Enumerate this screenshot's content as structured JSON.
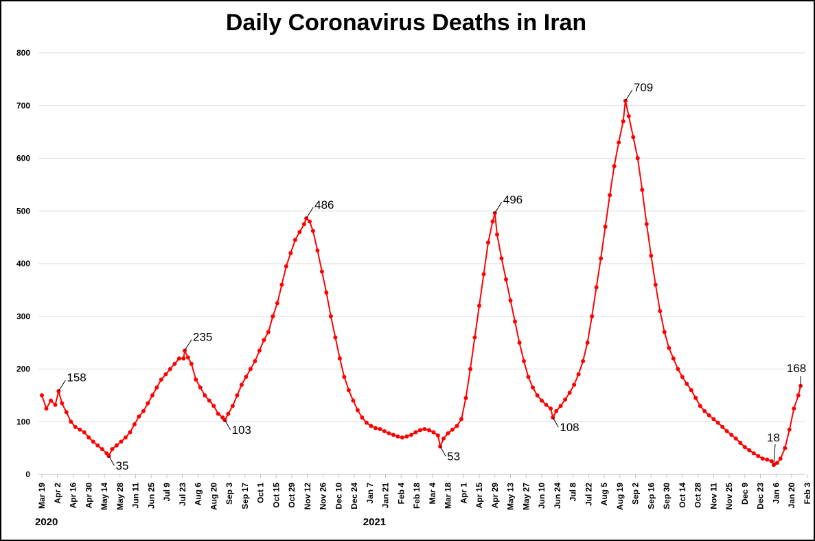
{
  "chart_data": {
    "type": "line",
    "title": "Daily Coronavirus Deaths in Iran",
    "xlabel": "",
    "ylabel": "",
    "ylim": [
      0,
      800
    ],
    "y_ticks": [
      "0",
      "100",
      "200",
      "300",
      "400",
      "500",
      "600",
      "700",
      "800"
    ],
    "x_tick_labels": [
      "Mar 19",
      "Apr 2",
      "Apr 16",
      "Apr 30",
      "May 14",
      "May 28",
      "Jun 11",
      "Jun 25",
      "Jul 9",
      "Jul 23",
      "Aug 6",
      "Aug 20",
      "Sep 3",
      "Sep 17",
      "Oct 1",
      "Oct 15",
      "Oct 29",
      "Nov 12",
      "Nov 26",
      "Dec 10",
      "Dec 24",
      "Jan 7",
      "Jan 21",
      "Feb 4",
      "Feb 18",
      "Mar 4",
      "Mar 18",
      "Apr 1",
      "Apr 15",
      "Apr 29",
      "May 13",
      "May 27",
      "Jun 10",
      "Jun 24",
      "Jul 8",
      "Jul 22",
      "Aug 5",
      "Aug 19",
      "Sep 2",
      "Sep 16",
      "Sep 30",
      "Oct 14",
      "Oct 28",
      "Nov 11",
      "Nov 25",
      "Dec 9",
      "Dec 23",
      "Jan 6",
      "Jan 20",
      "Feb 3"
    ],
    "year_labels": [
      {
        "label": "2020",
        "at_tick": 0
      },
      {
        "label": "2021",
        "at_tick": 21
      }
    ],
    "grid": true,
    "legend": "none",
    "series": [
      {
        "color": "#ff0000",
        "points": [
          [
            0,
            150
          ],
          [
            4,
            125
          ],
          [
            8,
            140
          ],
          [
            12,
            132
          ],
          [
            15,
            158
          ],
          [
            18,
            135
          ],
          [
            22,
            118
          ],
          [
            26,
            100
          ],
          [
            30,
            90
          ],
          [
            34,
            85
          ],
          [
            38,
            80
          ],
          [
            42,
            70
          ],
          [
            46,
            62
          ],
          [
            50,
            55
          ],
          [
            54,
            48
          ],
          [
            58,
            40
          ],
          [
            60,
            35
          ],
          [
            63,
            48
          ],
          [
            67,
            55
          ],
          [
            71,
            62
          ],
          [
            75,
            70
          ],
          [
            79,
            80
          ],
          [
            83,
            95
          ],
          [
            87,
            110
          ],
          [
            91,
            120
          ],
          [
            95,
            135
          ],
          [
            99,
            150
          ],
          [
            103,
            165
          ],
          [
            107,
            180
          ],
          [
            111,
            190
          ],
          [
            115,
            200
          ],
          [
            119,
            210
          ],
          [
            123,
            220
          ],
          [
            127,
            220
          ],
          [
            128,
            235
          ],
          [
            131,
            222
          ],
          [
            134,
            210
          ],
          [
            138,
            180
          ],
          [
            142,
            165
          ],
          [
            146,
            150
          ],
          [
            150,
            140
          ],
          [
            154,
            130
          ],
          [
            158,
            115
          ],
          [
            162,
            108
          ],
          [
            164,
            103
          ],
          [
            167,
            115
          ],
          [
            171,
            130
          ],
          [
            175,
            150
          ],
          [
            179,
            170
          ],
          [
            183,
            185
          ],
          [
            187,
            200
          ],
          [
            191,
            215
          ],
          [
            195,
            235
          ],
          [
            199,
            255
          ],
          [
            203,
            270
          ],
          [
            207,
            300
          ],
          [
            211,
            325
          ],
          [
            215,
            360
          ],
          [
            219,
            395
          ],
          [
            223,
            420
          ],
          [
            227,
            445
          ],
          [
            231,
            460
          ],
          [
            235,
            475
          ],
          [
            237,
            486
          ],
          [
            240,
            480
          ],
          [
            243,
            462
          ],
          [
            247,
            425
          ],
          [
            251,
            385
          ],
          [
            255,
            345
          ],
          [
            259,
            300
          ],
          [
            263,
            260
          ],
          [
            267,
            220
          ],
          [
            271,
            185
          ],
          [
            275,
            160
          ],
          [
            279,
            140
          ],
          [
            283,
            122
          ],
          [
            287,
            108
          ],
          [
            291,
            98
          ],
          [
            295,
            92
          ],
          [
            299,
            88
          ],
          [
            303,
            86
          ],
          [
            307,
            82
          ],
          [
            311,
            78
          ],
          [
            315,
            75
          ],
          [
            319,
            72
          ],
          [
            323,
            70
          ],
          [
            327,
            72
          ],
          [
            331,
            75
          ],
          [
            335,
            80
          ],
          [
            339,
            84
          ],
          [
            343,
            86
          ],
          [
            347,
            84
          ],
          [
            351,
            80
          ],
          [
            355,
            74
          ],
          [
            357,
            53
          ],
          [
            360,
            68
          ],
          [
            364,
            78
          ],
          [
            368,
            85
          ],
          [
            372,
            92
          ],
          [
            376,
            105
          ],
          [
            380,
            145
          ],
          [
            384,
            200
          ],
          [
            388,
            260
          ],
          [
            392,
            320
          ],
          [
            396,
            380
          ],
          [
            400,
            440
          ],
          [
            404,
            480
          ],
          [
            406,
            496
          ],
          [
            408,
            455
          ],
          [
            412,
            410
          ],
          [
            416,
            370
          ],
          [
            420,
            330
          ],
          [
            424,
            290
          ],
          [
            428,
            250
          ],
          [
            432,
            215
          ],
          [
            436,
            185
          ],
          [
            440,
            165
          ],
          [
            444,
            150
          ],
          [
            448,
            140
          ],
          [
            452,
            132
          ],
          [
            456,
            125
          ],
          [
            458,
            108
          ],
          [
            461,
            120
          ],
          [
            465,
            130
          ],
          [
            469,
            142
          ],
          [
            473,
            155
          ],
          [
            477,
            170
          ],
          [
            481,
            190
          ],
          [
            485,
            215
          ],
          [
            489,
            250
          ],
          [
            493,
            300
          ],
          [
            497,
            355
          ],
          [
            501,
            410
          ],
          [
            505,
            470
          ],
          [
            509,
            530
          ],
          [
            513,
            585
          ],
          [
            517,
            630
          ],
          [
            521,
            670
          ],
          [
            523,
            709
          ],
          [
            526,
            680
          ],
          [
            530,
            640
          ],
          [
            534,
            600
          ],
          [
            538,
            540
          ],
          [
            542,
            475
          ],
          [
            546,
            415
          ],
          [
            550,
            360
          ],
          [
            554,
            310
          ],
          [
            558,
            270
          ],
          [
            562,
            240
          ],
          [
            566,
            220
          ],
          [
            570,
            200
          ],
          [
            574,
            185
          ],
          [
            578,
            172
          ],
          [
            582,
            160
          ],
          [
            586,
            145
          ],
          [
            590,
            130
          ],
          [
            594,
            120
          ],
          [
            598,
            112
          ],
          [
            602,
            105
          ],
          [
            606,
            98
          ],
          [
            610,
            90
          ],
          [
            614,
            82
          ],
          [
            618,
            75
          ],
          [
            622,
            68
          ],
          [
            626,
            60
          ],
          [
            630,
            52
          ],
          [
            634,
            46
          ],
          [
            638,
            40
          ],
          [
            642,
            35
          ],
          [
            646,
            30
          ],
          [
            650,
            28
          ],
          [
            654,
            25
          ],
          [
            656,
            18
          ],
          [
            659,
            22
          ],
          [
            662,
            30
          ],
          [
            666,
            50
          ],
          [
            670,
            85
          ],
          [
            674,
            125
          ],
          [
            678,
            150
          ],
          [
            680,
            168
          ]
        ]
      }
    ],
    "annotations": [
      {
        "label": "158",
        "x": 15,
        "y": 158
      },
      {
        "label": "35",
        "x": 60,
        "y": 35
      },
      {
        "label": "235",
        "x": 128,
        "y": 235
      },
      {
        "label": "103",
        "x": 164,
        "y": 103
      },
      {
        "label": "486",
        "x": 237,
        "y": 486
      },
      {
        "label": "53",
        "x": 357,
        "y": 53
      },
      {
        "label": "496",
        "x": 406,
        "y": 496
      },
      {
        "label": "108",
        "x": 458,
        "y": 108
      },
      {
        "label": "709",
        "x": 523,
        "y": 709
      },
      {
        "label": "18",
        "x": 656,
        "y": 18
      },
      {
        "label": "168",
        "x": 680,
        "y": 168
      }
    ]
  }
}
